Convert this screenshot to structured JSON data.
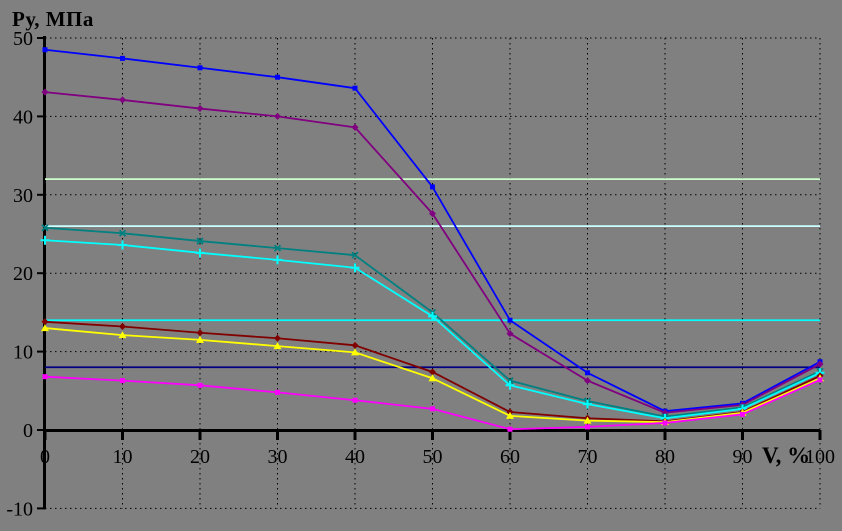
{
  "title": "Ру, МПа",
  "x_axis_label": "V, %",
  "chart_data": {
    "type": "line",
    "title": "Ру, МПа",
    "xlabel": "V, %",
    "ylabel": "Ру, МПа",
    "xlim": [
      0,
      100
    ],
    "ylim": [
      -10,
      50
    ],
    "x_ticks": [
      0,
      10,
      20,
      30,
      40,
      50,
      60,
      70,
      80,
      90,
      100
    ],
    "y_ticks": [
      50,
      40,
      30,
      20,
      10,
      0,
      -10
    ],
    "grid": "dotted-black-both-axes",
    "legend": "none",
    "background_color": "#808080",
    "axis_color": "#000000",
    "x": [
      0,
      10,
      20,
      30,
      40,
      50,
      60,
      70,
      80,
      90,
      100
    ],
    "series": [
      {
        "name": "series-blue",
        "color": "#0000FF",
        "marker": "square",
        "values": [
          48.5,
          47.4,
          46.2,
          45.0,
          43.6,
          31.0,
          14.0,
          7.3,
          2.4,
          3.4,
          8.7
        ]
      },
      {
        "name": "series-purple",
        "color": "#800080",
        "marker": "diamond",
        "values": [
          43.1,
          42.1,
          41.0,
          40.0,
          38.6,
          27.6,
          12.3,
          6.3,
          2.2,
          3.2,
          8.4
        ]
      },
      {
        "name": "series-teal",
        "color": "#008080",
        "marker": "x",
        "values": [
          25.8,
          25.1,
          24.1,
          23.2,
          22.3,
          15.0,
          6.3,
          3.7,
          1.7,
          2.9,
          7.5
        ]
      },
      {
        "name": "series-cyan",
        "color": "#00FFFF",
        "marker": "plus",
        "values": [
          24.2,
          23.6,
          22.6,
          21.7,
          20.7,
          14.5,
          5.7,
          3.3,
          1.5,
          2.7,
          7.3
        ]
      },
      {
        "name": "series-darkred",
        "color": "#800000",
        "marker": "diamond",
        "values": [
          13.8,
          13.2,
          12.4,
          11.7,
          10.8,
          7.4,
          2.3,
          1.5,
          1.1,
          2.3,
          6.9
        ]
      },
      {
        "name": "series-yellow",
        "color": "#FFFF00",
        "marker": "triangle",
        "values": [
          13.0,
          12.1,
          11.5,
          10.7,
          9.9,
          6.6,
          1.8,
          1.2,
          1.0,
          2.2,
          6.6
        ]
      },
      {
        "name": "series-magenta",
        "color": "#FF00FF",
        "marker": "square",
        "values": [
          6.8,
          6.3,
          5.7,
          4.8,
          3.8,
          2.7,
          0.1,
          0.4,
          0.9,
          2.0,
          6.4
        ]
      }
    ],
    "reference_lines": [
      {
        "name": "ref-line-pale-green",
        "color": "#CCFFCC",
        "value": 32
      },
      {
        "name": "ref-line-pale-cyan",
        "color": "#CCFFFF",
        "value": 26
      },
      {
        "name": "ref-line-cyan",
        "color": "#00FFFF",
        "value": 14
      },
      {
        "name": "ref-line-navy",
        "color": "#000080",
        "value": 8
      }
    ]
  }
}
